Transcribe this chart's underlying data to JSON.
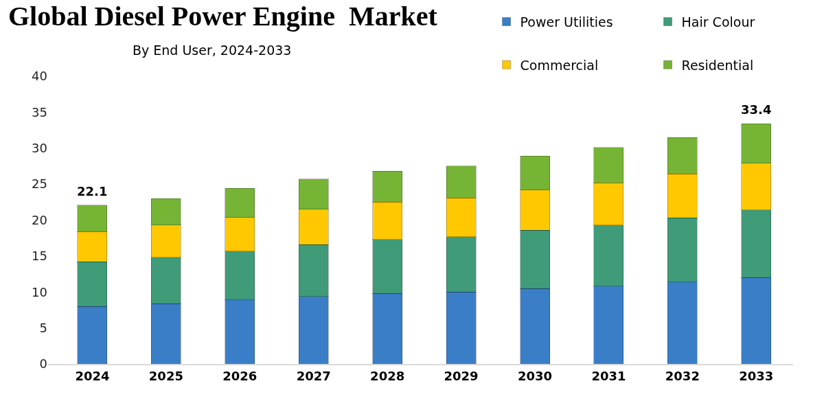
{
  "chart_data": {
    "type": "bar",
    "title": "Global Diesel Power Engine  Market",
    "subtitle": "By End User, 2024-2033",
    "categories": [
      "2024",
      "2025",
      "2026",
      "2027",
      "2028",
      "2029",
      "2030",
      "2031",
      "2032",
      "2033"
    ],
    "series": [
      {
        "name": "Power Utilities",
        "color": "#3a7ec8",
        "values": [
          8.0,
          8.4,
          8.9,
          9.4,
          9.8,
          10.0,
          10.5,
          10.8,
          11.4,
          12.0
        ]
      },
      {
        "name": "Hair Colour",
        "color": "#3f9b78",
        "values": [
          6.2,
          6.4,
          6.8,
          7.2,
          7.5,
          7.7,
          8.1,
          8.5,
          8.9,
          9.4
        ]
      },
      {
        "name": "Commercial",
        "color": "#ffc800",
        "values": [
          4.2,
          4.5,
          4.7,
          4.9,
          5.2,
          5.4,
          5.6,
          5.9,
          6.1,
          6.5
        ]
      },
      {
        "name": "Residential",
        "color": "#76b435",
        "values": [
          3.7,
          3.7,
          4.0,
          4.2,
          4.3,
          4.4,
          4.7,
          4.9,
          5.1,
          5.5
        ]
      }
    ],
    "stacked": true,
    "totals": [
      "22.1",
      null,
      null,
      null,
      null,
      null,
      null,
      null,
      null,
      "33.4"
    ],
    "ylim": [
      0,
      40
    ],
    "yticks": [
      0,
      5,
      10,
      15,
      20,
      25,
      30,
      35,
      40
    ],
    "grid": false,
    "legend": "top right"
  }
}
